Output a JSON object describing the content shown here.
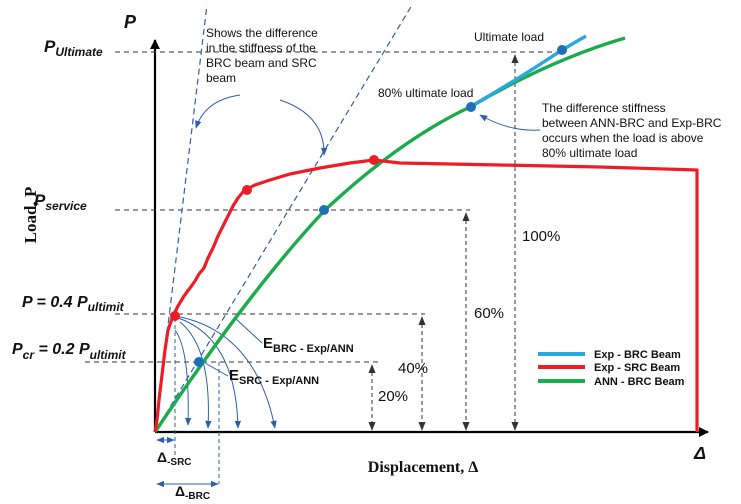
{
  "axes": {
    "y_symbol": "P",
    "x_symbol": "Δ",
    "y_title": "Load, P",
    "x_title": "Displacement, Δ"
  },
  "levels": {
    "ultimate": {
      "main": "P",
      "sub": "Ultimate"
    },
    "service": {
      "main": "P",
      "sub": "service"
    },
    "p04": {
      "main": "P = 0.4 P",
      "sub": "ultimit"
    },
    "pcr": {
      "main": "P",
      "sub1": "cr",
      "rest": " = 0.2 P",
      "sub2": "ultimit"
    }
  },
  "percent_labels": {
    "p100": "100%",
    "p60": "60%",
    "p40": "40%",
    "p20": "20%"
  },
  "annotations": {
    "stiffness_note": [
      "Shows the difference",
      "in the stiffness of the",
      "BRC beam and SRC",
      "beam"
    ],
    "ultimate_load": "Ultimate load",
    "eighty_ultimate": "80% ultimate load",
    "ann_note": [
      "The difference stiffness",
      "between ANN-BRC and Exp-BRC",
      "occurs when the load is above",
      "80% ultimate load"
    ],
    "e_brc": {
      "main": "E",
      "sub": "BRC - Exp/ANN"
    },
    "e_src": {
      "main": "E",
      "sub": "SRC - Exp/ANN"
    },
    "delta_src": {
      "main": "Δ",
      "sub": "-SRC"
    },
    "delta_brc": {
      "main": "Δ",
      "sub": "-BRC"
    }
  },
  "legend": [
    {
      "label": "Exp - BRC Beam",
      "color": "#29a8e0"
    },
    {
      "label": "Exp - SRC Beam",
      "color": "#ee1c24"
    },
    {
      "label": "ANN - BRC Beam",
      "color": "#1aab4b"
    }
  ],
  "colors": {
    "exp_brc": "#29a8e0",
    "exp_src": "#ee1c24",
    "ann_brc": "#1aab4b",
    "guide": "#2e5fa8",
    "point_blue": "#1e6fb5",
    "point_red": "#ee1c24"
  }
}
